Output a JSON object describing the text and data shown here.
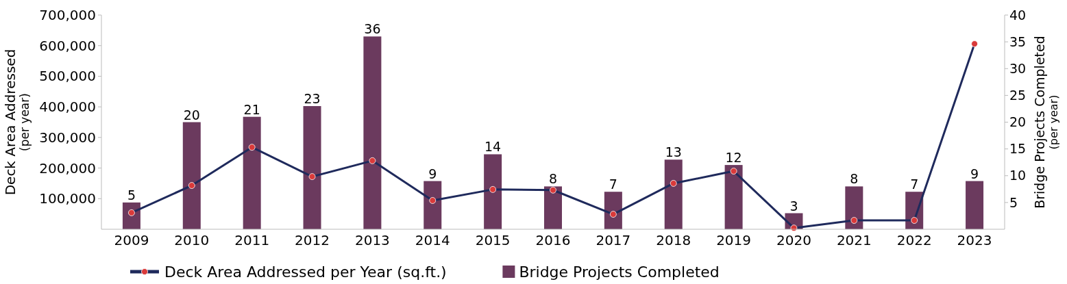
{
  "chart_data": {
    "type": "bar",
    "categories": [
      "2009",
      "2010",
      "2011",
      "2012",
      "2013",
      "2014",
      "2015",
      "2016",
      "2017",
      "2018",
      "2019",
      "2020",
      "2021",
      "2022",
      "2023"
    ],
    "ylabel": "Deck Area Addressed\n(per year)",
    "y2label": "Bridge Projects Completed\n(per year)",
    "ylim": [
      0,
      700000
    ],
    "yticks": [
      {
        "value": 100000,
        "label": "100,000"
      },
      {
        "value": 200000,
        "label": "200,000"
      },
      {
        "value": 300000,
        "label": "300,000"
      },
      {
        "value": 400000,
        "label": "400,000"
      },
      {
        "value": 500000,
        "label": "500,000"
      },
      {
        "value": 600000,
        "label": "600,000"
      },
      {
        "value": 700000,
        "label": "700,000"
      }
    ],
    "y2lim": [
      0,
      40
    ],
    "y2ticks": [
      5,
      10,
      15,
      20,
      25,
      30,
      35,
      40
    ],
    "series": [
      {
        "name": "Bridge Projects Completed",
        "axis": "y2",
        "color": "#6b3a5e",
        "values": [
          5,
          20,
          21,
          23,
          36,
          9,
          14,
          8,
          7,
          13,
          12,
          3,
          8,
          7,
          9
        ],
        "value_labels": [
          "5",
          "20",
          "21",
          "23",
          "36",
          "9",
          "14",
          "8",
          "7",
          "13",
          "12",
          "3",
          "8",
          "7",
          "9"
        ]
      },
      {
        "name": "Deck Area Addressed per Year (sq.ft.)",
        "type": "line",
        "color": "#1f2a5c",
        "marker": "circle",
        "values": [
          54000,
          143000,
          268000,
          172000,
          224000,
          94000,
          130000,
          128000,
          49000,
          150000,
          190000,
          4000,
          29000,
          29000,
          606000
        ]
      }
    ],
    "legend": "bottom",
    "grid": false
  }
}
